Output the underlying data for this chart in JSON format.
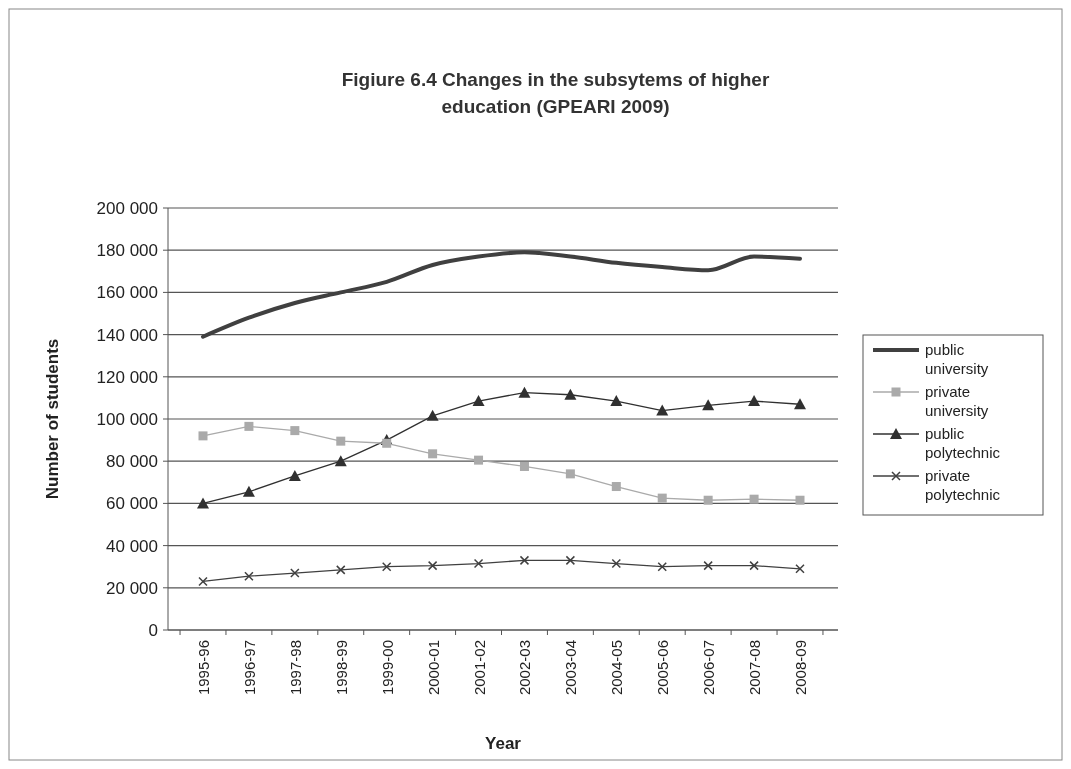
{
  "chart_data": {
    "type": "line",
    "title": "Figiure 6.4 Changes in the subsytems of higher education (GPEARI 2009)",
    "xlabel": "Year",
    "ylabel": "Number of students",
    "categories": [
      "1995-96",
      "1996-97",
      "1997-98",
      "1998-99",
      "1999-00",
      "2000-01",
      "2001-02",
      "2002-03",
      "2003-04",
      "2004-05",
      "2005-06",
      "2006-07",
      "2007-08",
      "2008-09"
    ],
    "ylim": [
      0,
      200000
    ],
    "yticks": [
      {
        "value": 0,
        "label": "0"
      },
      {
        "value": 20000,
        "label": "20 000"
      },
      {
        "value": 40000,
        "label": "40 000"
      },
      {
        "value": 60000,
        "label": "60 000"
      },
      {
        "value": 80000,
        "label": "80 000"
      },
      {
        "value": 100000,
        "label": "100 000"
      },
      {
        "value": 120000,
        "label": "120 000"
      },
      {
        "value": 140000,
        "label": "140 000"
      },
      {
        "value": 160000,
        "label": "160 000"
      },
      {
        "value": 180000,
        "label": "180 000"
      },
      {
        "value": 200000,
        "label": "200 000"
      }
    ],
    "grid": "y",
    "legend": "right",
    "series": [
      {
        "name": "public university",
        "color": "#404040",
        "marker": "none",
        "values": [
          139000,
          148000,
          155000,
          160000,
          165000,
          173000,
          177000,
          179000,
          177000,
          174000,
          172000,
          170500,
          177000,
          176000
        ]
      },
      {
        "name": "private university",
        "color": "#aaaaaa",
        "marker": "square",
        "values": [
          92000,
          96500,
          94500,
          89500,
          88500,
          83500,
          80500,
          77500,
          74000,
          68000,
          62500,
          61500,
          62000,
          61500
        ]
      },
      {
        "name": "public polytechnic",
        "color": "#303030",
        "marker": "triangle",
        "values": [
          60000,
          65500,
          73000,
          80000,
          90000,
          101500,
          108500,
          112500,
          111500,
          108500,
          104000,
          106500,
          108500,
          107000
        ]
      },
      {
        "name": "private polytechnic",
        "color": "#404040",
        "marker": "cross",
        "values": [
          23000,
          25500,
          27000,
          28500,
          30000,
          30500,
          31500,
          33000,
          33000,
          31500,
          30000,
          30500,
          30500,
          29000
        ]
      }
    ]
  }
}
